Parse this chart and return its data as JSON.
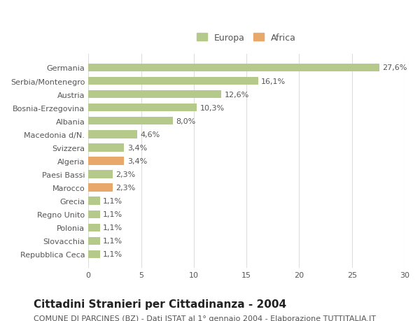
{
  "categories": [
    "Germania",
    "Serbia/Montenegro",
    "Austria",
    "Bosnia-Erzegovina",
    "Albania",
    "Macedonia d/N.",
    "Svizzera",
    "Algeria",
    "Paesi Bassi",
    "Marocco",
    "Grecia",
    "Regno Unito",
    "Polonia",
    "Slovacchia",
    "Repubblica Ceca"
  ],
  "values": [
    27.6,
    16.1,
    12.6,
    10.3,
    8.0,
    4.6,
    3.4,
    3.4,
    2.3,
    2.3,
    1.1,
    1.1,
    1.1,
    1.1,
    1.1
  ],
  "labels": [
    "27,6%",
    "16,1%",
    "12,6%",
    "10,3%",
    "8,0%",
    "4,6%",
    "3,4%",
    "3,4%",
    "2,3%",
    "2,3%",
    "1,1%",
    "1,1%",
    "1,1%",
    "1,1%",
    "1,1%"
  ],
  "continents": [
    "Europa",
    "Europa",
    "Europa",
    "Europa",
    "Europa",
    "Europa",
    "Europa",
    "Africa",
    "Europa",
    "Africa",
    "Europa",
    "Europa",
    "Europa",
    "Europa",
    "Europa"
  ],
  "color_europa": "#b5c98a",
  "color_africa": "#e8a86a",
  "background_color": "#ffffff",
  "grid_color": "#dddddd",
  "title": "Cittadini Stranieri per Cittadinanza - 2004",
  "subtitle": "COMUNE DI PARCINES (BZ) - Dati ISTAT al 1° gennaio 2004 - Elaborazione TUTTITALIA.IT",
  "xlim": [
    0,
    30
  ],
  "xticks": [
    0,
    5,
    10,
    15,
    20,
    25,
    30
  ],
  "legend_labels": [
    "Europa",
    "Africa"
  ],
  "title_fontsize": 11,
  "subtitle_fontsize": 8,
  "label_fontsize": 8,
  "tick_fontsize": 8
}
